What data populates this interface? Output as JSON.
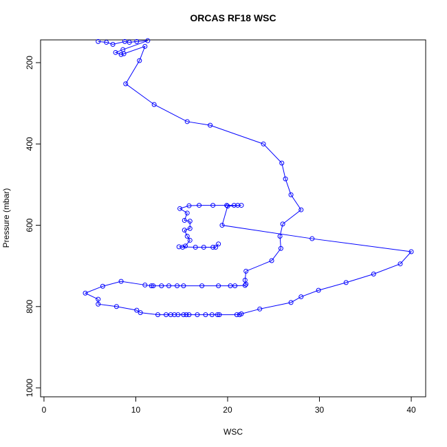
{
  "chart_data": {
    "type": "line",
    "title": "ORCAS RF18 WSC",
    "x_label": "WSC",
    "y_label": "Pressure (mbar)",
    "y_reversed": true,
    "color": "#0000ff",
    "markers": true,
    "xlim": [
      -0.37,
      41.57
    ],
    "xticks": [
      0,
      10,
      20,
      30,
      40
    ],
    "ylim": [
      144,
      1022
    ],
    "yticks": [
      200,
      400,
      600,
      800,
      1000
    ],
    "x": [
      5.9,
      6.8,
      7.5,
      8.8,
      9.3,
      10.1,
      11.3,
      8.6,
      7.8,
      8.4,
      8.7,
      11.0,
      10.4,
      8.9,
      12.0,
      15.6,
      18.1,
      23.9,
      25.9,
      26.3,
      26.9,
      28.0,
      26.0,
      25.7,
      25.8,
      24.8,
      22.0,
      21.9,
      22.0,
      21.9,
      20.8,
      20.3,
      19.0,
      17.2,
      15.2,
      14.5,
      13.6,
      12.8,
      11.9,
      11.7,
      11.0,
      8.4,
      6.4,
      4.5,
      5.9,
      5.9,
      7.9,
      10.1,
      10.5,
      12.4,
      13.3,
      13.8,
      14.2,
      14.6,
      15.2,
      15.5,
      15.8,
      16.7,
      17.6,
      18.3,
      18.9,
      19.1,
      21.0,
      21.3,
      21.5,
      23.5,
      26.9,
      28.0,
      29.9,
      32.9,
      35.9,
      38.8,
      40.0,
      29.2,
      19.4,
      20.0,
      21.5,
      21.1,
      20.7,
      19.9,
      18.4,
      16.9,
      15.8,
      14.8,
      15.6,
      15.3,
      15.9,
      15.9,
      15.3,
      15.6,
      15.9,
      15.4,
      15.1,
      14.7,
      16.5,
      17.4,
      18.4,
      18.7,
      19.0
    ],
    "values": [
      148,
      150,
      155,
      148,
      150,
      148,
      146,
      168,
      175,
      180,
      178,
      160,
      195,
      252,
      303,
      345,
      354,
      400,
      447,
      486,
      525,
      562,
      597,
      627,
      657,
      687,
      713,
      735,
      745,
      748,
      749,
      749,
      749,
      749,
      749,
      749,
      749,
      749,
      749,
      749,
      747,
      738,
      750,
      767,
      782,
      794,
      800,
      809,
      815,
      820,
      820,
      820,
      820,
      820,
      820,
      820,
      820,
      820,
      820,
      820,
      820,
      820,
      820,
      820,
      818,
      806,
      790,
      776,
      760,
      741,
      720,
      695,
      665,
      633,
      600,
      553,
      551,
      551,
      551,
      551,
      551,
      551,
      552,
      559,
      570,
      588,
      590,
      608,
      612,
      627,
      637,
      651,
      654,
      653,
      654,
      654,
      654,
      654,
      646
    ]
  }
}
